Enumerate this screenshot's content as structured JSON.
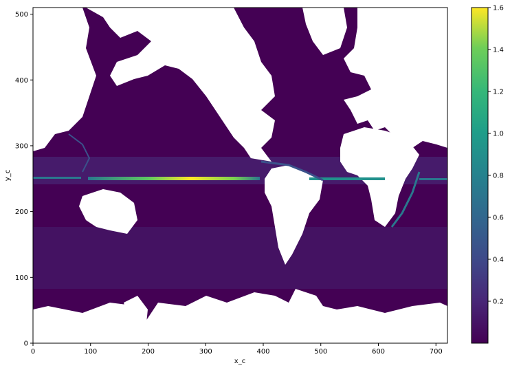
{
  "chart_data": {
    "type": "heatmap",
    "title": "",
    "xlabel": "x_c",
    "ylabel": "y_c",
    "xlim": [
      0,
      720
    ],
    "ylim": [
      0,
      510
    ],
    "xticks": [
      0,
      100,
      200,
      300,
      400,
      500,
      600,
      700
    ],
    "yticks": [
      0,
      100,
      200,
      300,
      400,
      500
    ],
    "colormap": "viridis",
    "color_range": [
      0,
      1.6
    ],
    "colorbar_ticks": [
      0.2,
      0.4,
      0.6,
      0.8,
      1.0,
      1.2,
      1.4,
      1.6
    ],
    "colorbar_tick_labels": [
      "0.2",
      "0.4",
      "0.6",
      "0.8",
      "1.0",
      "1.2",
      "1.4",
      "1.6"
    ],
    "grid": false,
    "missing_value_color": "#ffffff",
    "background_value_color": "#440154",
    "features": [
      {
        "description": "equatorial Pacific maximum",
        "x_range": [
          100,
          390
        ],
        "y": 248,
        "peak_value": 1.6
      },
      {
        "description": "equatorial Atlantic band",
        "x_range": [
          450,
          560
        ],
        "y": 247,
        "peak_value": 0.9
      },
      {
        "description": "western Indian Ocean band",
        "x_range": [
          0,
          95
        ],
        "y": 248,
        "peak_value": 0.8
      },
      {
        "description": "eastern Indian Ocean band",
        "x_range": [
          650,
          720
        ],
        "y": 248,
        "peak_value": 0.7
      }
    ]
  }
}
